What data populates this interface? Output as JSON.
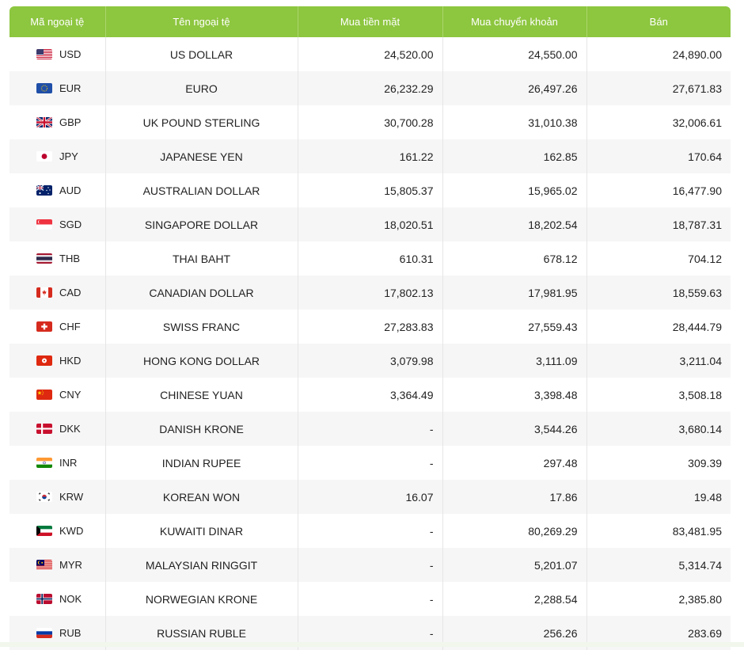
{
  "table": {
    "headers": {
      "code": "Mã ngoại tệ",
      "name": "Tên ngoại tệ",
      "cash_buy": "Mua tiền mặt",
      "transfer_buy": "Mua chuyển khoản",
      "sell": "Bán"
    },
    "rows": [
      {
        "flag": "us-flag-icon",
        "code": "USD",
        "name": "US DOLLAR",
        "cash_buy": "24,520.00",
        "transfer_buy": "24,550.00",
        "sell": "24,890.00"
      },
      {
        "flag": "eu-flag-icon",
        "code": "EUR",
        "name": "EURO",
        "cash_buy": "26,232.29",
        "transfer_buy": "26,497.26",
        "sell": "27,671.83"
      },
      {
        "flag": "uk-flag-icon",
        "code": "GBP",
        "name": "UK POUND STERLING",
        "cash_buy": "30,700.28",
        "transfer_buy": "31,010.38",
        "sell": "32,006.61"
      },
      {
        "flag": "jp-flag-icon",
        "code": "JPY",
        "name": "JAPANESE YEN",
        "cash_buy": "161.22",
        "transfer_buy": "162.85",
        "sell": "170.64"
      },
      {
        "flag": "au-flag-icon",
        "code": "AUD",
        "name": "AUSTRALIAN DOLLAR",
        "cash_buy": "15,805.37",
        "transfer_buy": "15,965.02",
        "sell": "16,477.90"
      },
      {
        "flag": "sg-flag-icon",
        "code": "SGD",
        "name": "SINGAPORE DOLLAR",
        "cash_buy": "18,020.51",
        "transfer_buy": "18,202.54",
        "sell": "18,787.31"
      },
      {
        "flag": "th-flag-icon",
        "code": "THB",
        "name": "THAI BAHT",
        "cash_buy": "610.31",
        "transfer_buy": "678.12",
        "sell": "704.12"
      },
      {
        "flag": "ca-flag-icon",
        "code": "CAD",
        "name": "CANADIAN DOLLAR",
        "cash_buy": "17,802.13",
        "transfer_buy": "17,981.95",
        "sell": "18,559.63"
      },
      {
        "flag": "ch-flag-icon",
        "code": "CHF",
        "name": "SWISS FRANC",
        "cash_buy": "27,283.83",
        "transfer_buy": "27,559.43",
        "sell": "28,444.79"
      },
      {
        "flag": "hk-flag-icon",
        "code": "HKD",
        "name": "HONG KONG DOLLAR",
        "cash_buy": "3,079.98",
        "transfer_buy": "3,111.09",
        "sell": "3,211.04"
      },
      {
        "flag": "cn-flag-icon",
        "code": "CNY",
        "name": "CHINESE YUAN",
        "cash_buy": "3,364.49",
        "transfer_buy": "3,398.48",
        "sell": "3,508.18"
      },
      {
        "flag": "dk-flag-icon",
        "code": "DKK",
        "name": "DANISH KRONE",
        "cash_buy": "-",
        "transfer_buy": "3,544.26",
        "sell": "3,680.14"
      },
      {
        "flag": "in-flag-icon",
        "code": "INR",
        "name": "INDIAN RUPEE",
        "cash_buy": "-",
        "transfer_buy": "297.48",
        "sell": "309.39"
      },
      {
        "flag": "kr-flag-icon",
        "code": "KRW",
        "name": "KOREAN WON",
        "cash_buy": "16.07",
        "transfer_buy": "17.86",
        "sell": "19.48"
      },
      {
        "flag": "kw-flag-icon",
        "code": "KWD",
        "name": "KUWAITI DINAR",
        "cash_buy": "-",
        "transfer_buy": "80,269.29",
        "sell": "83,481.95"
      },
      {
        "flag": "my-flag-icon",
        "code": "MYR",
        "name": "MALAYSIAN RINGGIT",
        "cash_buy": "-",
        "transfer_buy": "5,201.07",
        "sell": "5,314.74"
      },
      {
        "flag": "no-flag-icon",
        "code": "NOK",
        "name": "NORWEGIAN KRONE",
        "cash_buy": "-",
        "transfer_buy": "2,288.54",
        "sell": "2,385.80"
      },
      {
        "flag": "ru-flag-icon",
        "code": "RUB",
        "name": "RUSSIAN RUBLE",
        "cash_buy": "-",
        "transfer_buy": "256.26",
        "sell": "283.69"
      }
    ]
  },
  "colors": {
    "header_bg": "#8dc63f",
    "header_text": "#ffffff",
    "row_alt": "#f6f6f6"
  }
}
